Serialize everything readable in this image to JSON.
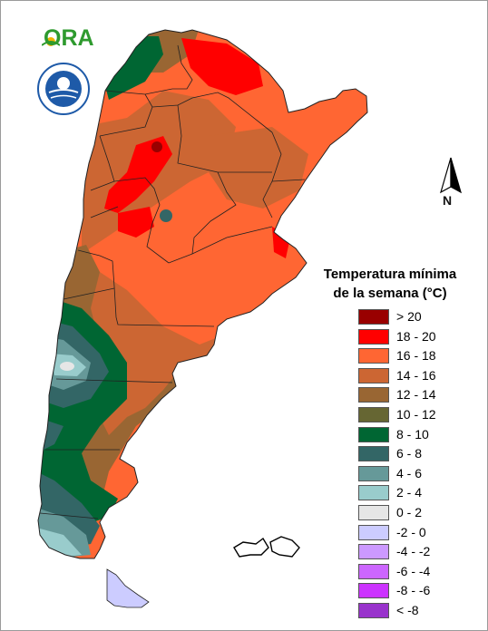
{
  "logo": {
    "ora_text": "ORA",
    "agency_seal_icon": "smn-seal-icon",
    "agency_seal_lettering": "SERVICIO METEOROLÓGICO NACIONAL ARGENTINA"
  },
  "north_arrow": {
    "label": "N",
    "icon": "north-arrow-icon"
  },
  "legend": {
    "title_line1": "Temperatura mínima",
    "title_line2": "de la semana (°C)",
    "items": [
      {
        "label": "> 20",
        "color": "#990000"
      },
      {
        "label": "18 - 20",
        "color": "#ff0000"
      },
      {
        "label": "16 - 18",
        "color": "#ff6633"
      },
      {
        "label": "14 - 16",
        "color": "#cc6633"
      },
      {
        "label": "12 - 14",
        "color": "#996633"
      },
      {
        "label": "10 - 12",
        "color": "#666633"
      },
      {
        "label": "8 - 10",
        "color": "#006633"
      },
      {
        "label": "6 - 8",
        "color": "#336666"
      },
      {
        "label": "4 - 6",
        "color": "#669999"
      },
      {
        "label": "2 - 4",
        "color": "#99cccc"
      },
      {
        "label": "0 - 2",
        "color": "#e6e6e6"
      },
      {
        "label": "-2 - 0",
        "color": "#ccccff"
      },
      {
        "label": "-4 - -2",
        "color": "#cc99ff"
      },
      {
        "label": "-6 - -4",
        "color": "#cc66ff"
      },
      {
        "label": "-8 - -6",
        "color": "#cc33ff"
      },
      {
        "label": "< -8",
        "color": "#9933cc"
      }
    ]
  }
}
